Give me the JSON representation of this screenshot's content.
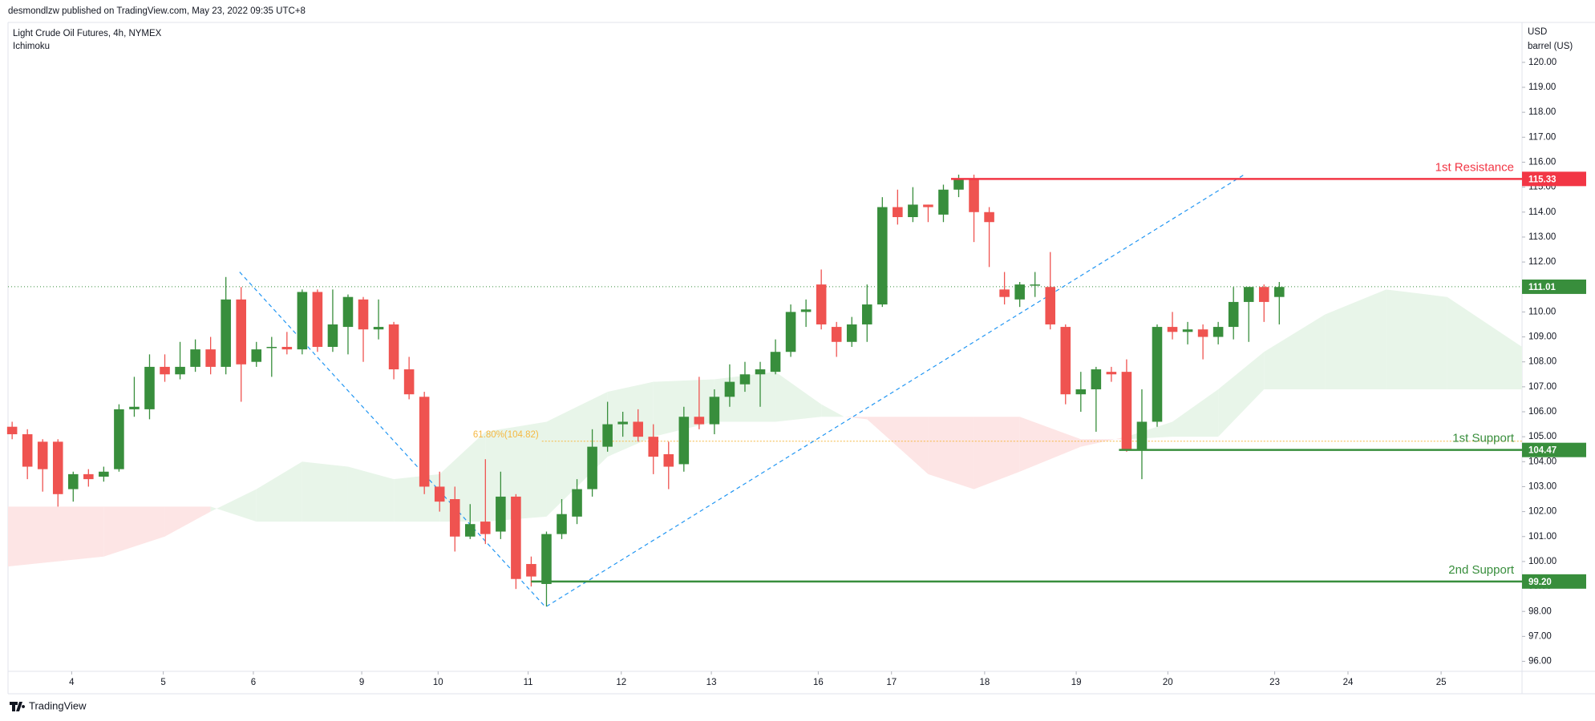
{
  "chart_data": {
    "type": "candlestick",
    "publisher": "desmondlzw published on TradingView.com, May 23, 2022 09:35 UTC+8",
    "title": "Light Crude Oil Futures, 4h, NYMEX",
    "subtitle": "Ichimoku",
    "currency": "USD",
    "unit": "barrel (US)",
    "brand": "TradingView",
    "up_color": "#388e3c",
    "down_color": "#ef5350",
    "open": [
      105.4,
      105.1,
      104.8,
      104.8,
      102.9,
      103.5,
      103.4,
      103.7,
      106.1,
      106.1,
      107.8,
      107.5,
      107.8,
      108.5,
      107.8,
      110.5,
      108.0,
      108.6,
      108.6,
      108.5,
      110.8,
      108.6,
      109.4,
      110.5,
      109.3,
      109.5,
      107.7,
      106.6,
      103.0,
      102.5,
      101.0,
      101.6,
      101.2,
      102.6,
      99.9,
      99.1,
      101.1,
      101.8,
      102.9,
      104.6,
      105.5,
      105.6,
      105.0,
      104.3,
      103.9,
      105.8,
      105.5,
      106.6,
      107.1,
      107.5,
      107.6,
      108.4,
      110.0,
      111.1,
      109.4,
      108.8,
      109.5,
      110.3,
      114.2,
      113.8,
      114.3,
      113.9,
      114.9,
      115.3,
      114.0,
      110.9,
      110.5,
      111.1,
      111.0,
      109.4,
      106.7,
      106.9,
      107.6,
      107.6,
      104.5,
      105.6,
      109.4,
      109.2,
      109.3,
      109.0,
      109.4,
      110.4,
      111.0,
      110.6
    ],
    "high": [
      105.6,
      105.3,
      104.9,
      104.9,
      103.6,
      103.7,
      103.8,
      106.3,
      107.4,
      108.3,
      108.3,
      108.8,
      108.9,
      109.0,
      111.4,
      111.0,
      108.8,
      109.0,
      109.2,
      110.9,
      110.9,
      110.9,
      110.7,
      110.6,
      110.5,
      109.6,
      108.2,
      106.8,
      103.6,
      103.0,
      102.3,
      104.1,
      103.6,
      102.7,
      100.2,
      101.2,
      102.5,
      103.3,
      105.3,
      106.4,
      106.0,
      106.1,
      105.5,
      104.8,
      106.2,
      107.4,
      106.9,
      107.9,
      108.0,
      108.0,
      108.9,
      110.3,
      110.5,
      111.7,
      109.6,
      109.8,
      111.1,
      114.6,
      114.9,
      115.0,
      114.3,
      115.1,
      115.5,
      115.5,
      114.2,
      111.6,
      111.2,
      111.6,
      112.4,
      109.5,
      107.6,
      107.8,
      107.8,
      108.1,
      106.9,
      109.5,
      110.0,
      109.6,
      109.5,
      109.6,
      111.0,
      111.0,
      111.1,
      111.2
    ],
    "low": [
      104.9,
      103.3,
      102.8,
      102.2,
      102.4,
      103.0,
      103.2,
      103.6,
      105.8,
      105.7,
      107.2,
      107.3,
      107.6,
      107.5,
      107.5,
      106.4,
      107.8,
      107.4,
      108.3,
      108.3,
      108.4,
      108.4,
      108.3,
      108.0,
      108.9,
      107.3,
      106.5,
      102.7,
      102.0,
      100.4,
      100.9,
      100.7,
      100.9,
      98.9,
      99.0,
      98.2,
      100.9,
      101.5,
      102.6,
      104.4,
      105.0,
      104.8,
      103.5,
      102.9,
      103.6,
      105.3,
      105.1,
      106.2,
      106.8,
      106.2,
      107.5,
      108.2,
      109.4,
      109.3,
      108.2,
      108.6,
      108.8,
      110.2,
      113.5,
      113.6,
      113.6,
      113.6,
      114.6,
      112.8,
      111.8,
      110.3,
      110.2,
      110.6,
      109.3,
      106.3,
      106.0,
      105.2,
      107.2,
      104.4,
      103.3,
      105.4,
      108.9,
      108.7,
      108.1,
      108.7,
      108.9,
      108.8,
      109.6,
      109.5
    ],
    "close": [
      105.1,
      103.8,
      103.7,
      102.7,
      103.5,
      103.3,
      103.6,
      106.1,
      106.2,
      107.8,
      107.5,
      107.8,
      108.5,
      107.8,
      110.5,
      107.9,
      108.5,
      108.6,
      108.5,
      110.8,
      108.6,
      109.5,
      110.6,
      109.3,
      109.4,
      107.7,
      106.7,
      103.0,
      102.4,
      101.0,
      101.5,
      101.1,
      102.6,
      99.3,
      99.4,
      101.1,
      101.9,
      102.9,
      104.6,
      105.5,
      105.6,
      105.0,
      104.2,
      103.8,
      105.8,
      105.5,
      106.6,
      107.2,
      107.5,
      107.7,
      108.4,
      110.0,
      110.1,
      109.5,
      108.8,
      109.5,
      110.3,
      114.2,
      113.8,
      114.3,
      114.2,
      114.9,
      115.3,
      114.0,
      113.6,
      110.6,
      111.1,
      111.1,
      109.5,
      106.7,
      106.9,
      107.7,
      107.5,
      104.5,
      105.6,
      109.4,
      109.2,
      109.3,
      109.0,
      109.4,
      110.4,
      111.0,
      110.4,
      111.0
    ],
    "xlim": [
      -0.27,
      98.9
    ],
    "xticks": [
      {
        "value": 3.9,
        "label": "4"
      },
      {
        "value": 9.9,
        "label": "5"
      },
      {
        "value": 15.8,
        "label": "6"
      },
      {
        "value": 22.9,
        "label": "9"
      },
      {
        "value": 27.9,
        "label": "10"
      },
      {
        "value": 33.8,
        "label": "11"
      },
      {
        "value": 39.9,
        "label": "12"
      },
      {
        "value": 45.8,
        "label": "13"
      },
      {
        "value": 52.8,
        "label": "16"
      },
      {
        "value": 57.6,
        "label": "17"
      },
      {
        "value": 63.7,
        "label": "18"
      },
      {
        "value": 69.7,
        "label": "19"
      },
      {
        "value": 75.7,
        "label": "20"
      },
      {
        "value": 82.7,
        "label": "23"
      },
      {
        "value": 87.5,
        "label": "24"
      },
      {
        "value": 93.6,
        "label": "25"
      }
    ],
    "ylim": [
      95.6,
      121.6
    ],
    "yticks": [
      {
        "value": 96,
        "label": "96.00"
      },
      {
        "value": 97,
        "label": "97.00"
      },
      {
        "value": 98,
        "label": "98.00"
      },
      {
        "value": 99,
        "label": "99.00"
      },
      {
        "value": 100,
        "label": "100.00"
      },
      {
        "value": 101,
        "label": "101.00"
      },
      {
        "value": 102,
        "label": "102.00"
      },
      {
        "value": 103,
        "label": "103.00"
      },
      {
        "value": 104,
        "label": "104.00"
      },
      {
        "value": 105,
        "label": "105.00"
      },
      {
        "value": 106,
        "label": "106.00"
      },
      {
        "value": 107,
        "label": "107.00"
      },
      {
        "value": 108,
        "label": "108.00"
      },
      {
        "value": 109,
        "label": "109.00"
      },
      {
        "value": 110,
        "label": "110.00"
      },
      {
        "value": 111,
        "label": "111.00"
      },
      {
        "value": 112,
        "label": "112.00"
      },
      {
        "value": 113,
        "label": "113.00"
      },
      {
        "value": 114,
        "label": "114.00"
      },
      {
        "value": 115,
        "label": "115.00"
      },
      {
        "value": 116,
        "label": "116.00"
      },
      {
        "value": 117,
        "label": "117.00"
      },
      {
        "value": 118,
        "label": "118.00"
      },
      {
        "value": 119,
        "label": "119.00"
      },
      {
        "value": 120,
        "label": "120.00"
      }
    ],
    "last_price": {
      "value": 111.01,
      "color": "#388e3c"
    },
    "levels": [
      {
        "name": "1st Resistance",
        "value": 115.33,
        "x0": 61.5,
        "color": "#f23645"
      },
      {
        "name": "1st Support",
        "value": 104.47,
        "x0": 72.5,
        "color": "#388e3c"
      },
      {
        "name": "2nd Support",
        "value": 99.2,
        "value_label": "99.20",
        "x0": 34,
        "color": "#388e3c"
      }
    ],
    "fib": {
      "value": 104.82,
      "label": "61.80%(104.82)",
      "x0": 34.7,
      "color": "#f5b841"
    },
    "trendlines": {
      "color": "#2196f3",
      "lines": [
        {
          "x": [
            14.9,
            34.9
          ],
          "y": [
            111.6,
            98.2
          ]
        },
        {
          "x": [
            35,
            80.7
          ],
          "y": [
            98.2,
            115.5
          ]
        }
      ]
    },
    "cloud": {
      "up_color": "#e8f5e9",
      "down_color": "#fde5e5",
      "x": [
        -0.27,
        6,
        10,
        13,
        16,
        19,
        22,
        25,
        28,
        31,
        35,
        39,
        42,
        46,
        50,
        53,
        54.5,
        56,
        60,
        63,
        66,
        70,
        73,
        76,
        79,
        82,
        86,
        90,
        94,
        98.9
      ],
      "a": [
        99.8,
        100.2,
        101.0,
        102.0,
        102.9,
        104.0,
        103.8,
        103.3,
        103.5,
        105.2,
        105.6,
        106.8,
        107.2,
        107.3,
        107.6,
        106.3,
        105.8,
        105.7,
        103.5,
        102.9,
        103.6,
        104.6,
        105.0,
        105.6,
        106.9,
        108.4,
        109.9,
        110.9,
        110.6,
        108.6
      ],
      "b": [
        102.2,
        102.2,
        102.2,
        102.2,
        101.6,
        101.6,
        101.6,
        101.6,
        101.6,
        101.6,
        101.8,
        104.2,
        105.0,
        105.6,
        105.6,
        105.8,
        105.8,
        105.8,
        105.8,
        105.8,
        105.8,
        104.9,
        104.9,
        105.0,
        105.0,
        106.9,
        106.9,
        106.9,
        106.9,
        106.9
      ]
    }
  }
}
